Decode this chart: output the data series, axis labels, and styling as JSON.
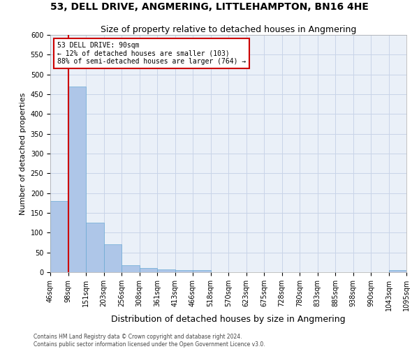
{
  "title1": "53, DELL DRIVE, ANGMERING, LITTLEHAMPTON, BN16 4HE",
  "title2": "Size of property relative to detached houses in Angmering",
  "xlabel": "Distribution of detached houses by size in Angmering",
  "ylabel": "Number of detached properties",
  "footer1": "Contains HM Land Registry data © Crown copyright and database right 2024.",
  "footer2": "Contains public sector information licensed under the Open Government Licence v3.0.",
  "bins": [
    "46sqm",
    "98sqm",
    "151sqm",
    "203sqm",
    "256sqm",
    "308sqm",
    "361sqm",
    "413sqm",
    "466sqm",
    "518sqm",
    "570sqm",
    "623sqm",
    "675sqm",
    "728sqm",
    "780sqm",
    "833sqm",
    "885sqm",
    "938sqm",
    "990sqm",
    "1043sqm",
    "1095sqm"
  ],
  "values": [
    180,
    470,
    125,
    70,
    18,
    10,
    7,
    5,
    5,
    0,
    0,
    0,
    0,
    0,
    0,
    0,
    0,
    0,
    0,
    5
  ],
  "bar_color": "#aec6e8",
  "bar_edge_color": "#6aaad4",
  "grid_color": "#c8d4e8",
  "background_color": "#eaf0f8",
  "annotation_box_color": "#cc0000",
  "vline_color": "#cc0000",
  "annotation_text": "53 DELL DRIVE: 90sqm\n← 12% of detached houses are smaller (103)\n88% of semi-detached houses are larger (764) →",
  "ylim": [
    0,
    600
  ],
  "yticks": [
    0,
    50,
    100,
    150,
    200,
    250,
    300,
    350,
    400,
    450,
    500,
    550,
    600
  ],
  "title1_fontsize": 10,
  "title2_fontsize": 9,
  "xlabel_fontsize": 9,
  "ylabel_fontsize": 8,
  "tick_fontsize": 7,
  "footer_fontsize": 5.5,
  "annotation_fontsize": 7
}
